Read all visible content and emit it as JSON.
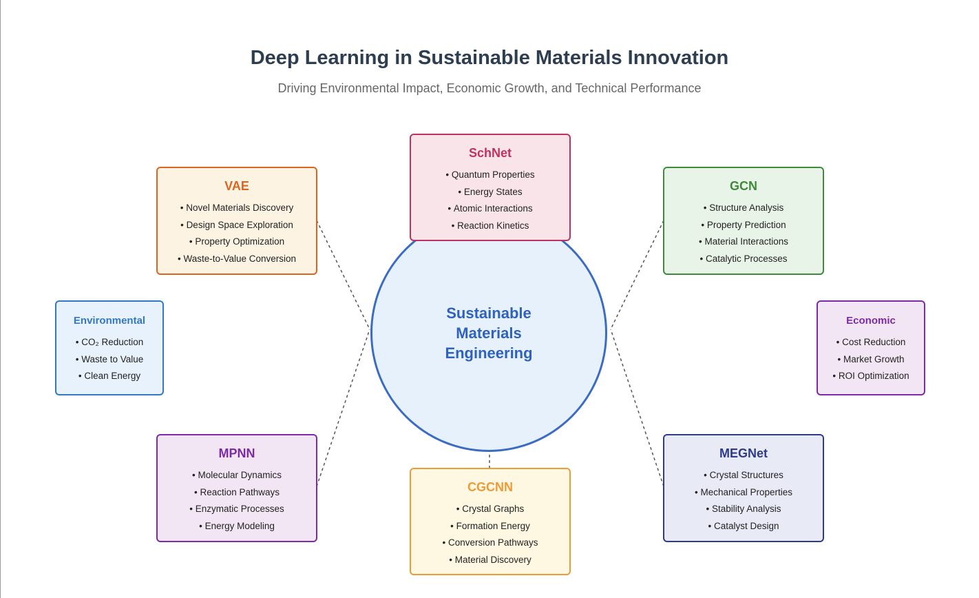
{
  "header": {
    "title": "Deep Learning in Sustainable Materials Innovation",
    "subtitle": "Driving Environmental Impact, Economic Growth, and Technical Performance"
  },
  "hub": {
    "label": "Sustainable Materials Engineering"
  },
  "models": {
    "schnet": {
      "title": "SchNet",
      "items": [
        "Quantum Properties",
        "Energy States",
        "Atomic Interactions",
        "Reaction Kinetics"
      ]
    },
    "vae": {
      "title": "VAE",
      "items": [
        "Novel Materials Discovery",
        "Design Space Exploration",
        "Property Optimization",
        "Waste-to-Value Conversion"
      ]
    },
    "gcn": {
      "title": "GCN",
      "items": [
        "Structure Analysis",
        "Property Prediction",
        "Material Interactions",
        "Catalytic Processes"
      ]
    },
    "mpnn": {
      "title": "MPNN",
      "items": [
        "Molecular Dynamics",
        "Reaction Pathways",
        "Enzymatic Processes",
        "Energy Modeling"
      ]
    },
    "cgcnn": {
      "title": "CGCNN",
      "items": [
        "Crystal Graphs",
        "Formation Energy",
        "Conversion Pathways",
        "Material Discovery"
      ]
    },
    "megnet": {
      "title": "MEGNet",
      "items": [
        "Crystal Structures",
        "Mechanical Properties",
        "Stability Analysis",
        "Catalyst Design"
      ]
    }
  },
  "impacts": {
    "environmental": {
      "title": "Environmental",
      "items": [
        "CO₂ Reduction",
        "Waste to Value",
        "Clean Energy"
      ]
    },
    "economic": {
      "title": "Economic",
      "items": [
        "Cost Reduction",
        "Market Growth",
        "ROI Optimization"
      ]
    }
  },
  "colors": {
    "schnet": "#c0315f",
    "vae": "#de6422",
    "gcn": "#3f8a3a",
    "mpnn": "#7d2aa5",
    "cgcnn": "#ef9a38",
    "megnet": "#2e3a8c",
    "environmental": "#3478c4",
    "economic": "#7d2aa5",
    "hub": "#3c6cc2"
  }
}
